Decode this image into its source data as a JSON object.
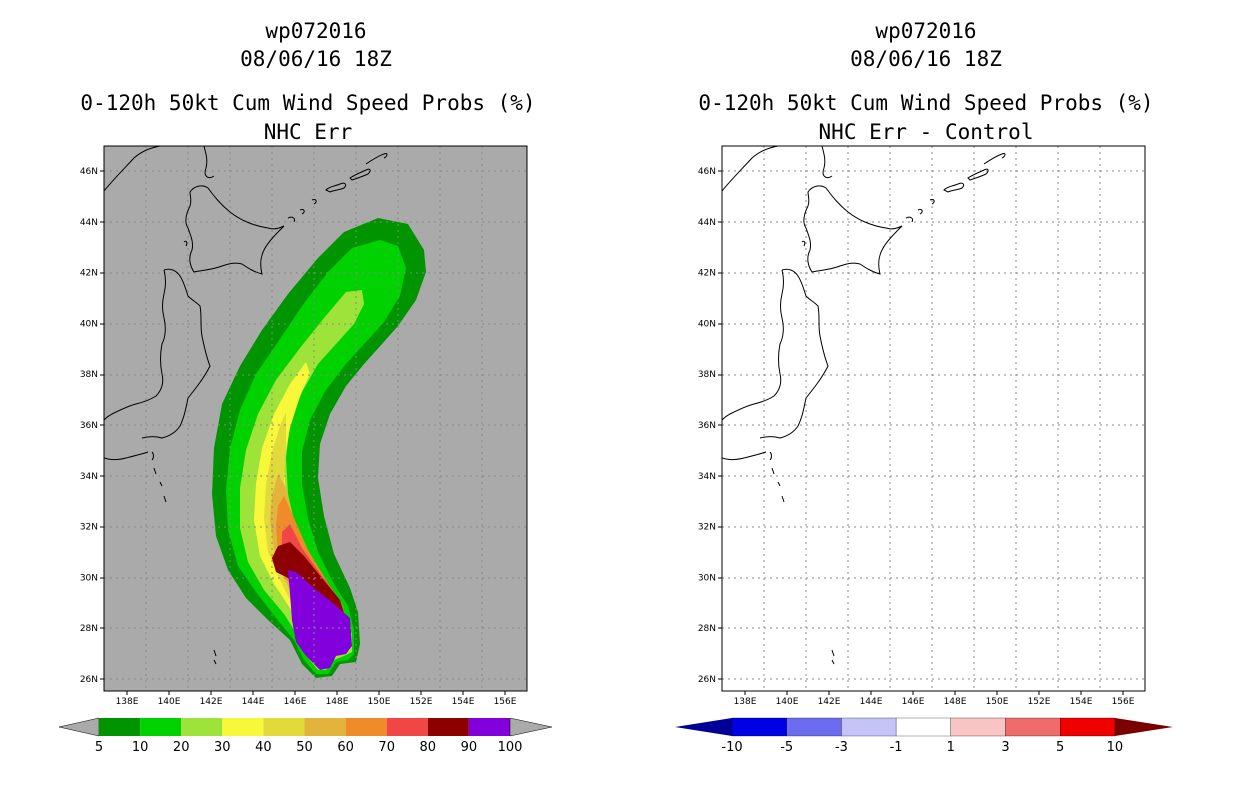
{
  "left_panel": {
    "storm_id": "wp072016",
    "datetime": "08/06/16 18Z",
    "title": "0-120h 50kt Cum Wind Speed Probs (%)",
    "subtitle": "NHC Err",
    "background": "#aaaaaa",
    "colorbar": {
      "labels": [
        "5",
        "10",
        "20",
        "30",
        "40",
        "50",
        "60",
        "70",
        "80",
        "90",
        "100"
      ],
      "colors": [
        "#009400",
        "#00d200",
        "#9ee33a",
        "#f8f83b",
        "#e2d93b",
        "#e2b43b",
        "#f08b2a",
        "#f04646",
        "#8c0000",
        "#8200dc"
      ],
      "end_color": "#aaaaaa"
    }
  },
  "right_panel": {
    "storm_id": "wp072016",
    "datetime": "08/06/16 18Z",
    "title": "0-120h 50kt Cum Wind Speed Probs (%)",
    "subtitle": "NHC Err - Control",
    "background": "#ffffff",
    "colorbar": {
      "labels": [
        "-10",
        "-5",
        "-3",
        "-1",
        "1",
        "3",
        "5",
        "10"
      ],
      "colors": [
        "#0000e6",
        "#6c6cf0",
        "#c4c4f8",
        "#ffffff",
        "#f8c4c4",
        "#f06c6c",
        "#f00000"
      ],
      "left_color": "#000096",
      "right_color": "#7a0000"
    }
  },
  "axes": {
    "lon_labels": [
      "138E",
      "140E",
      "142E",
      "144E",
      "146E",
      "148E",
      "150E",
      "152E",
      "154E",
      "156E"
    ],
    "lat_labels": [
      "26N",
      "28N",
      "30N",
      "32N",
      "34N",
      "36N",
      "38N",
      "40N",
      "42N",
      "44N",
      "46N"
    ]
  }
}
